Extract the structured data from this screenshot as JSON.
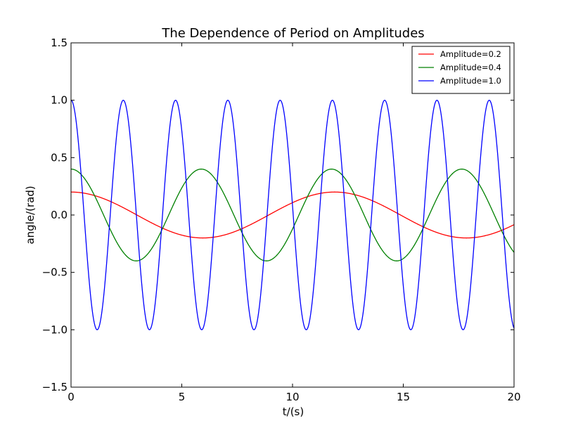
{
  "chart_data": {
    "type": "line",
    "title": "The Dependence of Period on Amplitudes",
    "xlabel": "t/(s)",
    "ylabel": "angle/(rad)",
    "xlim": [
      0,
      20
    ],
    "ylim": [
      -1.5,
      1.5
    ],
    "xticks": [
      "0",
      "5",
      "10",
      "15",
      "20"
    ],
    "yticks": [
      "−1.5",
      "−1.0",
      "−0.5",
      "0.0",
      "0.5",
      "1.0",
      "1.5"
    ],
    "grid": false,
    "legend_position": "top-right",
    "series": [
      {
        "name": "Amplitude=0.2",
        "color": "#ff0000",
        "amplitude": 0.2,
        "period": 11.9,
        "points": [
          [
            0,
            0.2
          ],
          [
            1.5,
            0.141
          ],
          [
            3,
            0.0
          ],
          [
            4.5,
            -0.141
          ],
          [
            5.95,
            -0.2
          ],
          [
            7.4,
            -0.141
          ],
          [
            8.9,
            0.0
          ],
          [
            10.4,
            0.141
          ],
          [
            11.9,
            0.2
          ],
          [
            13.4,
            0.141
          ],
          [
            14.9,
            0.0
          ],
          [
            16.4,
            -0.141
          ],
          [
            17.85,
            -0.2
          ],
          [
            19.3,
            -0.141
          ],
          [
            20,
            -0.064
          ]
        ]
      },
      {
        "name": "Amplitude=0.4",
        "color": "#008000",
        "amplitude": 0.4,
        "period": 5.88,
        "points": [
          [
            0,
            0.4
          ],
          [
            1.47,
            0.0
          ],
          [
            2.94,
            -0.4
          ],
          [
            4.41,
            0.0
          ],
          [
            5.88,
            0.4
          ],
          [
            7.35,
            0.0
          ],
          [
            8.82,
            -0.4
          ],
          [
            10.29,
            0.0
          ],
          [
            11.76,
            0.4
          ],
          [
            13.23,
            0.0
          ],
          [
            14.7,
            -0.4
          ],
          [
            16.17,
            0.0
          ],
          [
            17.64,
            0.4
          ],
          [
            19.11,
            0.0
          ],
          [
            20,
            -0.26
          ]
        ]
      },
      {
        "name": "Amplitude=1.0",
        "color": "#0000ff",
        "amplitude": 1.0,
        "period": 2.36,
        "points": [
          [
            0,
            1.0
          ],
          [
            1.18,
            -1.0
          ],
          [
            2.36,
            1.0
          ],
          [
            3.54,
            -1.0
          ],
          [
            4.72,
            1.0
          ],
          [
            5.9,
            -1.0
          ],
          [
            7.08,
            1.0
          ],
          [
            8.26,
            -1.0
          ],
          [
            9.44,
            1.0
          ],
          [
            10.62,
            -1.0
          ],
          [
            11.8,
            1.0
          ],
          [
            12.98,
            -1.0
          ],
          [
            14.16,
            1.0
          ],
          [
            15.34,
            -1.0
          ],
          [
            16.52,
            1.0
          ],
          [
            17.7,
            -1.0
          ],
          [
            18.88,
            1.0
          ],
          [
            20,
            -0.99
          ]
        ]
      }
    ]
  }
}
